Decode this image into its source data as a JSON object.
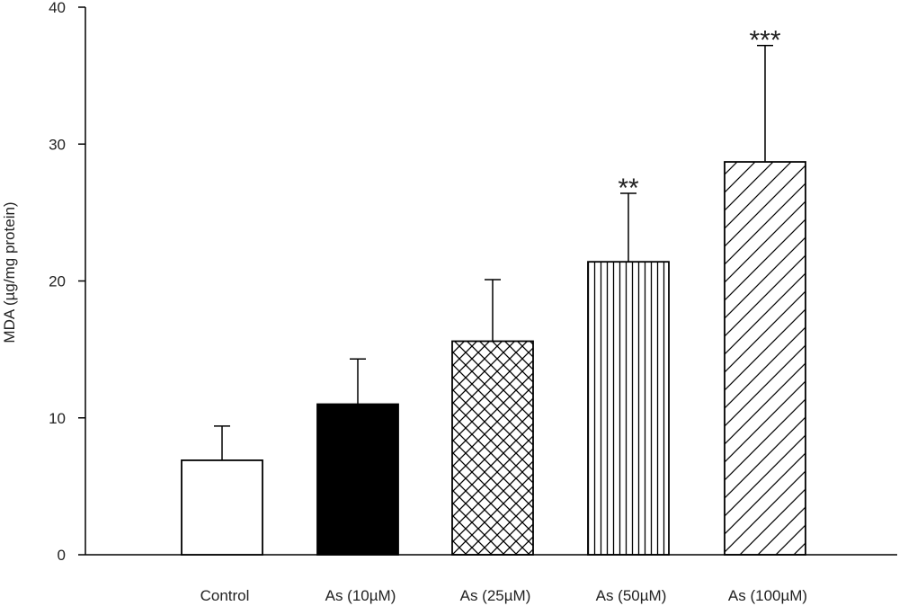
{
  "chart_data": {
    "type": "bar",
    "title": "",
    "xlabel": "",
    "ylabel": "MDA (µg/mg protein)",
    "ylim": [
      0,
      40
    ],
    "yticks": [
      0,
      10,
      20,
      30,
      40
    ],
    "grid": false,
    "categories": [
      "Control",
      "As (10µM)",
      "As (25µM)",
      "As (50µM)",
      "As (100µM)"
    ],
    "values": [
      6.9,
      11.0,
      15.6,
      21.4,
      28.7
    ],
    "errors": [
      2.5,
      3.3,
      4.5,
      5.0,
      8.5
    ],
    "fills": [
      "white",
      "black",
      "crosshatch",
      "vertical-lines",
      "diagonal-lines"
    ],
    "annotations": [
      "",
      "",
      "",
      "**",
      "***"
    ]
  }
}
